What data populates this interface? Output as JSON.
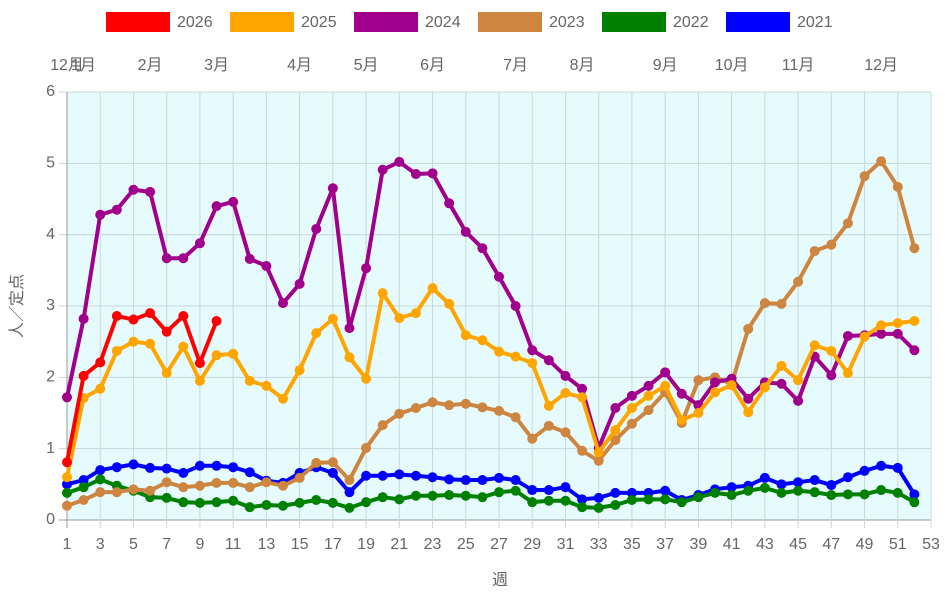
{
  "chart_data": {
    "type": "line",
    "x_label": "週",
    "y_label": "人／定点",
    "x": [
      1,
      2,
      3,
      4,
      5,
      6,
      7,
      8,
      9,
      10,
      11,
      12,
      13,
      14,
      15,
      16,
      17,
      18,
      19,
      20,
      21,
      22,
      23,
      24,
      25,
      26,
      27,
      28,
      29,
      30,
      31,
      32,
      33,
      34,
      35,
      36,
      37,
      38,
      39,
      40,
      41,
      42,
      43,
      44,
      45,
      46,
      47,
      48,
      49,
      50,
      51,
      52
    ],
    "xlim": [
      1,
      53
    ],
    "xticks": [
      1,
      3,
      5,
      7,
      9,
      11,
      13,
      15,
      17,
      19,
      21,
      23,
      25,
      27,
      29,
      31,
      33,
      35,
      37,
      39,
      41,
      43,
      45,
      47,
      49,
      51,
      53
    ],
    "x2ticks": [
      {
        "value": 1,
        "label": "12月"
      },
      {
        "value": 2,
        "label": "1月"
      },
      {
        "value": 6,
        "label": "2月"
      },
      {
        "value": 10,
        "label": "3月"
      },
      {
        "value": 15,
        "label": "4月"
      },
      {
        "value": 19,
        "label": "5月"
      },
      {
        "value": 23,
        "label": "6月"
      },
      {
        "value": 28,
        "label": "7月"
      },
      {
        "value": 32,
        "label": "8月"
      },
      {
        "value": 37,
        "label": "9月"
      },
      {
        "value": 41,
        "label": "10月"
      },
      {
        "value": 45,
        "label": "11月"
      },
      {
        "value": 50,
        "label": "12月"
      }
    ],
    "ylim": [
      0,
      6
    ],
    "yticks": [
      0,
      1,
      2,
      3,
      4,
      5,
      6
    ],
    "grid": true,
    "legend": "top",
    "plot_background": "#e5fbfd",
    "series": [
      {
        "name": "2026",
        "color": "#ff0000",
        "values": [
          0.81,
          2.02,
          2.21,
          2.86,
          2.81,
          2.9,
          2.64,
          2.86,
          2.2,
          2.79,
          null,
          null,
          null,
          null,
          null,
          null,
          null,
          null,
          null,
          null,
          null,
          null,
          null,
          null,
          null,
          null,
          null,
          null,
          null,
          null,
          null,
          null,
          null,
          null,
          null,
          null,
          null,
          null,
          null,
          null,
          null,
          null,
          null,
          null,
          null,
          null,
          null,
          null,
          null,
          null,
          null,
          null
        ]
      },
      {
        "name": "2025",
        "color": "#ffa500",
        "values": [
          0.6,
          1.71,
          1.84,
          2.37,
          2.5,
          2.47,
          2.06,
          2.43,
          1.95,
          2.31,
          2.33,
          1.95,
          1.88,
          1.7,
          2.1,
          2.62,
          2.82,
          2.28,
          1.98,
          3.18,
          2.83,
          2.9,
          3.25,
          3.03,
          2.59,
          2.52,
          2.36,
          2.29,
          2.2,
          1.6,
          1.78,
          1.72,
          0.95,
          1.26,
          1.57,
          1.74,
          1.88,
          1.4,
          1.5,
          1.79,
          1.89,
          1.51,
          1.86,
          2.16,
          1.96,
          2.45,
          2.37,
          2.06,
          2.57,
          2.73,
          2.76,
          2.79
        ]
      },
      {
        "name": "2024",
        "color": "#a0008c",
        "values": [
          1.72,
          2.82,
          4.28,
          4.35,
          4.63,
          4.6,
          3.67,
          3.67,
          3.88,
          4.4,
          4.46,
          3.66,
          3.56,
          3.04,
          3.31,
          4.08,
          4.65,
          2.69,
          3.53,
          4.91,
          5.02,
          4.85,
          4.86,
          4.44,
          4.04,
          3.81,
          3.41,
          3.0,
          2.38,
          2.24,
          2.02,
          1.84,
          1.01,
          1.57,
          1.74,
          1.88,
          2.07,
          1.77,
          1.61,
          1.93,
          1.98,
          1.7,
          1.93,
          1.91,
          1.67,
          2.29,
          2.03,
          2.58,
          2.59,
          2.61,
          2.61,
          2.38
        ]
      },
      {
        "name": "2023",
        "color": "#cd853f",
        "values": [
          0.2,
          0.28,
          0.39,
          0.39,
          0.43,
          0.41,
          0.53,
          0.46,
          0.48,
          0.52,
          0.52,
          0.46,
          0.53,
          0.48,
          0.59,
          0.8,
          0.81,
          0.56,
          1.01,
          1.33,
          1.49,
          1.57,
          1.65,
          1.61,
          1.63,
          1.58,
          1.53,
          1.44,
          1.14,
          1.32,
          1.23,
          0.97,
          0.83,
          1.12,
          1.35,
          1.54,
          1.79,
          1.36,
          1.96,
          2.0,
          1.91,
          2.68,
          3.04,
          3.03,
          3.34,
          3.77,
          3.86,
          4.16,
          4.82,
          5.03,
          4.67,
          3.81
        ]
      },
      {
        "name": "2022",
        "color": "#008000",
        "values": [
          0.38,
          0.46,
          0.57,
          0.48,
          0.41,
          0.32,
          0.31,
          0.25,
          0.24,
          0.25,
          0.27,
          0.18,
          0.21,
          0.2,
          0.24,
          0.28,
          0.24,
          0.17,
          0.25,
          0.32,
          0.29,
          0.34,
          0.34,
          0.35,
          0.34,
          0.32,
          0.39,
          0.41,
          0.25,
          0.27,
          0.27,
          0.18,
          0.17,
          0.21,
          0.28,
          0.29,
          0.29,
          0.25,
          0.32,
          0.38,
          0.35,
          0.41,
          0.45,
          0.38,
          0.41,
          0.39,
          0.35,
          0.36,
          0.36,
          0.42,
          0.38,
          0.25
        ]
      },
      {
        "name": "2021",
        "color": "#0000ff",
        "values": [
          0.5,
          0.56,
          0.7,
          0.74,
          0.78,
          0.73,
          0.72,
          0.66,
          0.76,
          0.76,
          0.74,
          0.67,
          0.55,
          0.52,
          0.66,
          0.74,
          0.66,
          0.39,
          0.62,
          0.62,
          0.64,
          0.62,
          0.6,
          0.57,
          0.56,
          0.56,
          0.59,
          0.56,
          0.42,
          0.42,
          0.46,
          0.29,
          0.31,
          0.38,
          0.38,
          0.38,
          0.41,
          0.28,
          0.35,
          0.43,
          0.46,
          0.48,
          0.59,
          0.5,
          0.53,
          0.56,
          0.49,
          0.6,
          0.69,
          0.76,
          0.73,
          0.36
        ]
      }
    ]
  }
}
